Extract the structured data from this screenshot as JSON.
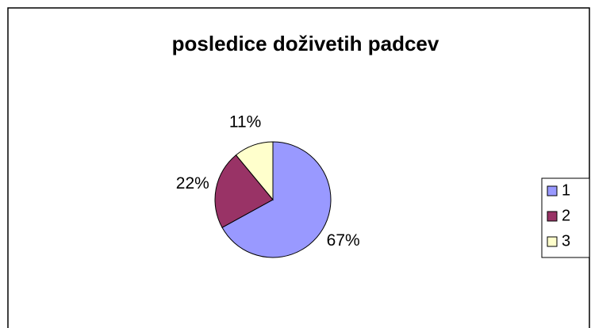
{
  "chart_data": {
    "type": "pie",
    "title": "posledice doživetih padcev",
    "categories": [
      "1",
      "2",
      "3"
    ],
    "values": [
      67,
      22,
      11
    ],
    "value_labels": [
      "67%",
      "22%",
      "11%"
    ],
    "colors": [
      "#9999ff",
      "#993366",
      "#ffffcc"
    ],
    "legend": "right"
  }
}
